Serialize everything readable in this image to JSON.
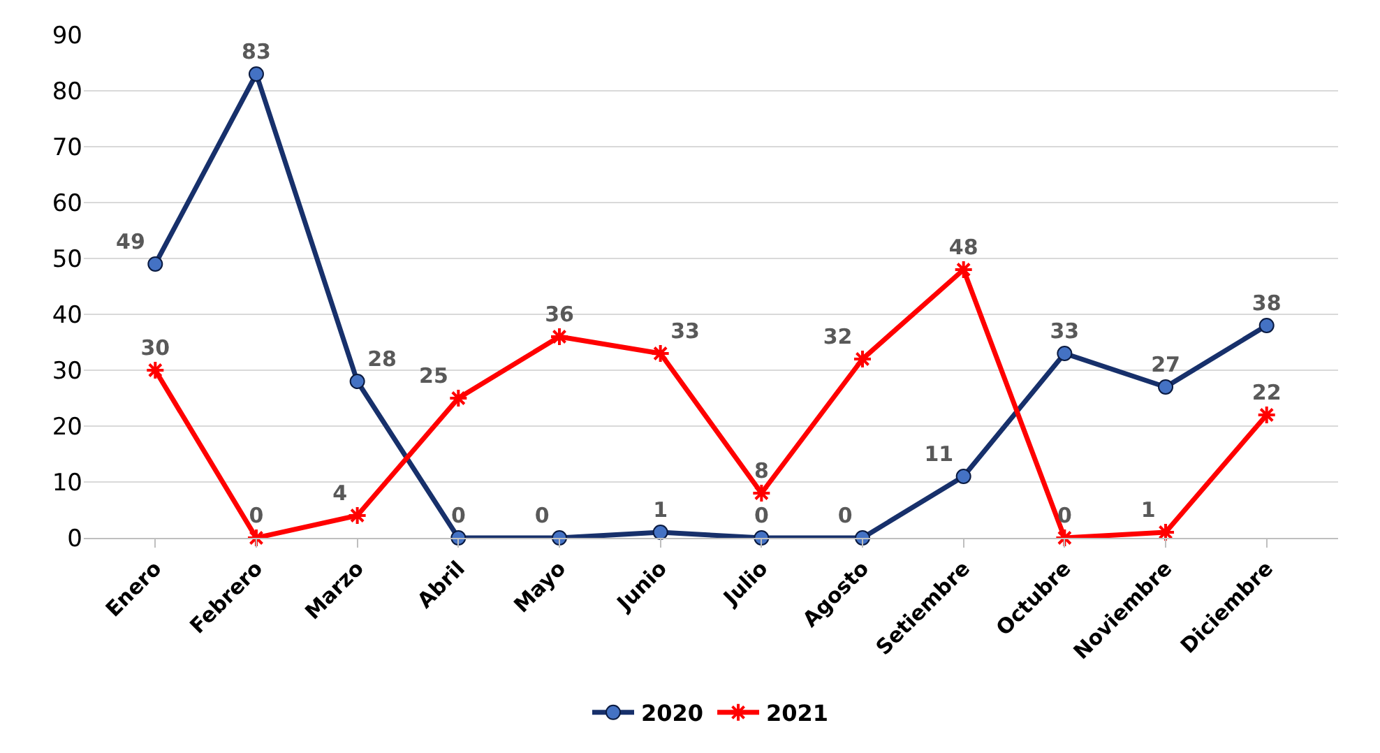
{
  "chart_data": {
    "type": "line",
    "categories": [
      "Enero",
      "Febrero",
      "Marzo",
      "Abril",
      "Mayo",
      "Junio",
      "Julio",
      "Agosto",
      "Setiembre",
      "Octubre",
      "Noviembre",
      "Diciembre"
    ],
    "series": [
      {
        "name": "2020",
        "color": "#17306b",
        "marker": "circle",
        "values": [
          49,
          83,
          28,
          0,
          0,
          1,
          0,
          0,
          11,
          33,
          27,
          38
        ]
      },
      {
        "name": "2021",
        "color": "#ff0000",
        "marker": "cross",
        "values": [
          30,
          0,
          4,
          25,
          36,
          33,
          8,
          32,
          48,
          0,
          1,
          22
        ]
      }
    ],
    "ylim": [
      0,
      90
    ],
    "yticks": [
      0,
      10,
      20,
      30,
      40,
      50,
      60,
      70,
      80,
      90
    ],
    "grid": "y",
    "legend": "bottom",
    "data_labels": true,
    "line_style": "solid"
  }
}
